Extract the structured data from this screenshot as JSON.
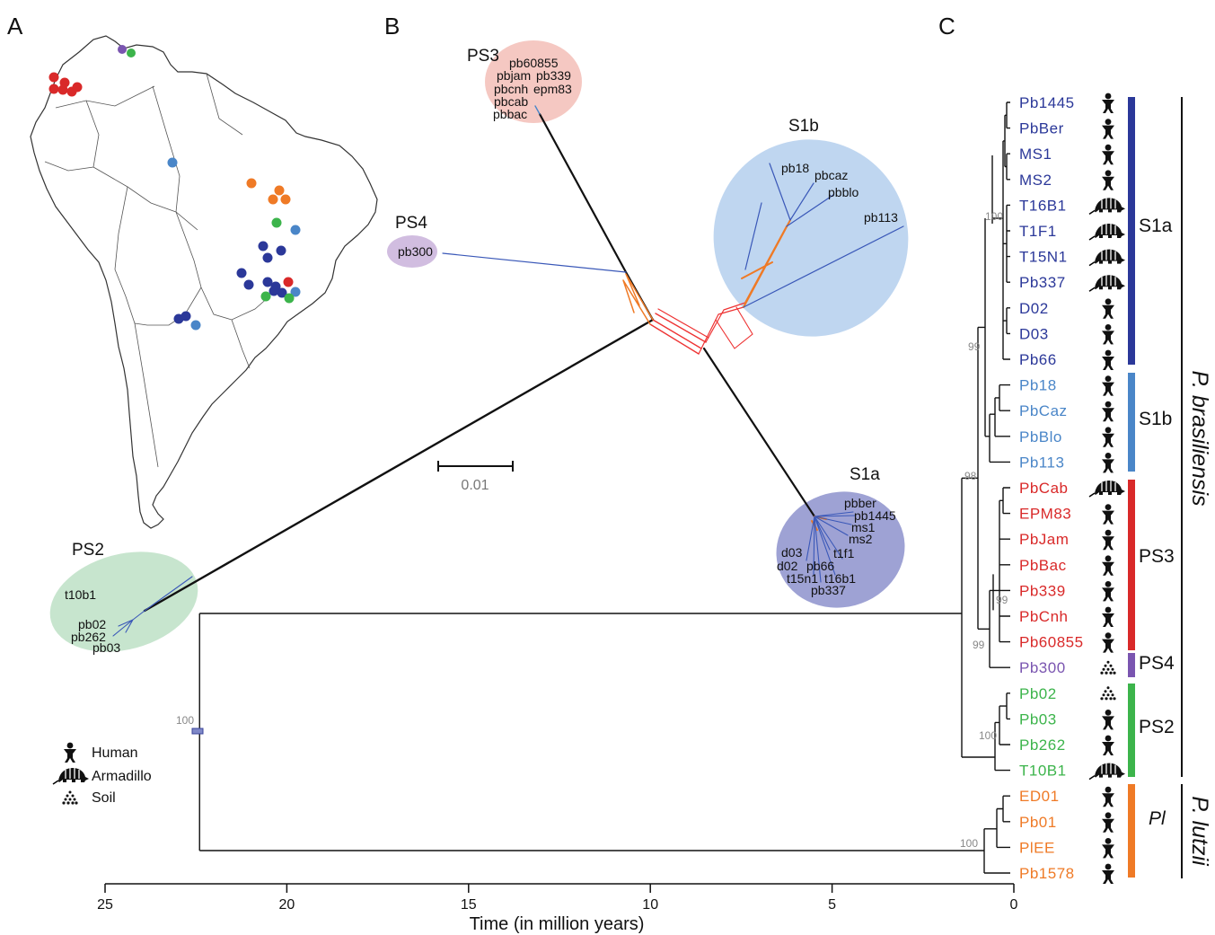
{
  "panels": {
    "a": "A",
    "b": "B",
    "c": "C"
  },
  "colors": {
    "S1a": "#2b3899",
    "S1b": "#4a86c8",
    "PS3": "#d92929",
    "PS4": "#7a55b0",
    "PS2": "#3cb44b",
    "Pl": "#ef7a26"
  },
  "map_points": {
    "red": 6,
    "purple": 1,
    "green": 5,
    "light_blue": 5,
    "orange": 4,
    "dark_blue": 13
  },
  "network": {
    "groups": {
      "PS3": {
        "label": "PS3",
        "members": [
          "pb60855",
          "pbjam",
          "pb339",
          "pbcnh",
          "epm83",
          "pbcab",
          "pbbac"
        ]
      },
      "S1b": {
        "label": "S1b",
        "members": [
          "pb18",
          "pbcaz",
          "pbblo",
          "pb113"
        ]
      },
      "PS4": {
        "label": "PS4",
        "members": [
          "pb300"
        ]
      },
      "S1a": {
        "label": "S1a",
        "members": [
          "pbber",
          "pb1445",
          "ms1",
          "ms2",
          "t1f1",
          "d03",
          "d02",
          "pb66",
          "t15n1",
          "t16b1",
          "pb337"
        ]
      },
      "PS2": {
        "label": "PS2",
        "members": [
          "t10b1",
          "pb02",
          "pb262",
          "pb03"
        ]
      }
    },
    "scale_label": "0.01"
  },
  "tree": {
    "taxa": [
      {
        "name": "Pb1445",
        "clade": "S1a",
        "host": "human"
      },
      {
        "name": "PbBer",
        "clade": "S1a",
        "host": "human"
      },
      {
        "name": "MS1",
        "clade": "S1a",
        "host": "human"
      },
      {
        "name": "MS2",
        "clade": "S1a",
        "host": "human"
      },
      {
        "name": "T16B1",
        "clade": "S1a",
        "host": "armadillo"
      },
      {
        "name": "T1F1",
        "clade": "S1a",
        "host": "armadillo"
      },
      {
        "name": "T15N1",
        "clade": "S1a",
        "host": "armadillo"
      },
      {
        "name": "Pb337",
        "clade": "S1a",
        "host": "armadillo"
      },
      {
        "name": "D02",
        "clade": "S1a",
        "host": "human"
      },
      {
        "name": "D03",
        "clade": "S1a",
        "host": "human"
      },
      {
        "name": "Pb66",
        "clade": "S1a",
        "host": "human"
      },
      {
        "name": "Pb18",
        "clade": "S1b",
        "host": "human"
      },
      {
        "name": "PbCaz",
        "clade": "S1b",
        "host": "human"
      },
      {
        "name": "PbBlo",
        "clade": "S1b",
        "host": "human"
      },
      {
        "name": "Pb113",
        "clade": "S1b",
        "host": "human"
      },
      {
        "name": "PbCab",
        "clade": "PS3",
        "host": "armadillo"
      },
      {
        "name": "EPM83",
        "clade": "PS3",
        "host": "human"
      },
      {
        "name": "PbJam",
        "clade": "PS3",
        "host": "human"
      },
      {
        "name": "PbBac",
        "clade": "PS3",
        "host": "human"
      },
      {
        "name": "Pb339",
        "clade": "PS3",
        "host": "human"
      },
      {
        "name": "PbCnh",
        "clade": "PS3",
        "host": "human"
      },
      {
        "name": "Pb60855",
        "clade": "PS3",
        "host": "human"
      },
      {
        "name": "Pb300",
        "clade": "PS4",
        "host": "soil"
      },
      {
        "name": "Pb02",
        "clade": "PS2",
        "host": "soil"
      },
      {
        "name": "Pb03",
        "clade": "PS2",
        "host": "human"
      },
      {
        "name": "Pb262",
        "clade": "PS2",
        "host": "human"
      },
      {
        "name": "T10B1",
        "clade": "PS2",
        "host": "armadillo"
      },
      {
        "name": "ED01",
        "clade": "Pl",
        "host": "human"
      },
      {
        "name": "Pb01",
        "clade": "Pl",
        "host": "human"
      },
      {
        "name": "PlEE",
        "clade": "Pl",
        "host": "human"
      },
      {
        "name": "Pb1578",
        "clade": "Pl",
        "host": "human"
      }
    ],
    "bootstrap": {
      "root": "100",
      "s1a": "100",
      "s1": "99",
      "bras": "98",
      "ps3": "99",
      "ps3ps4": "99",
      "ps2": "100",
      "pl": "100"
    },
    "clade_labels": {
      "S1a": "S1a",
      "S1b": "S1b",
      "PS3": "PS3",
      "PS4": "PS4",
      "PS2": "PS2",
      "Pl": "Pl"
    },
    "species": {
      "bras": "P. brasiliensis",
      "lutzii": "P. lutzii"
    },
    "axis": {
      "title": "Time (in million years)",
      "ticks": [
        "25",
        "20",
        "15",
        "10",
        "5",
        "0"
      ],
      "range": [
        25,
        0
      ]
    }
  },
  "legend": {
    "human": "Human",
    "armadillo": "Armadillo",
    "soil": "Soil"
  }
}
